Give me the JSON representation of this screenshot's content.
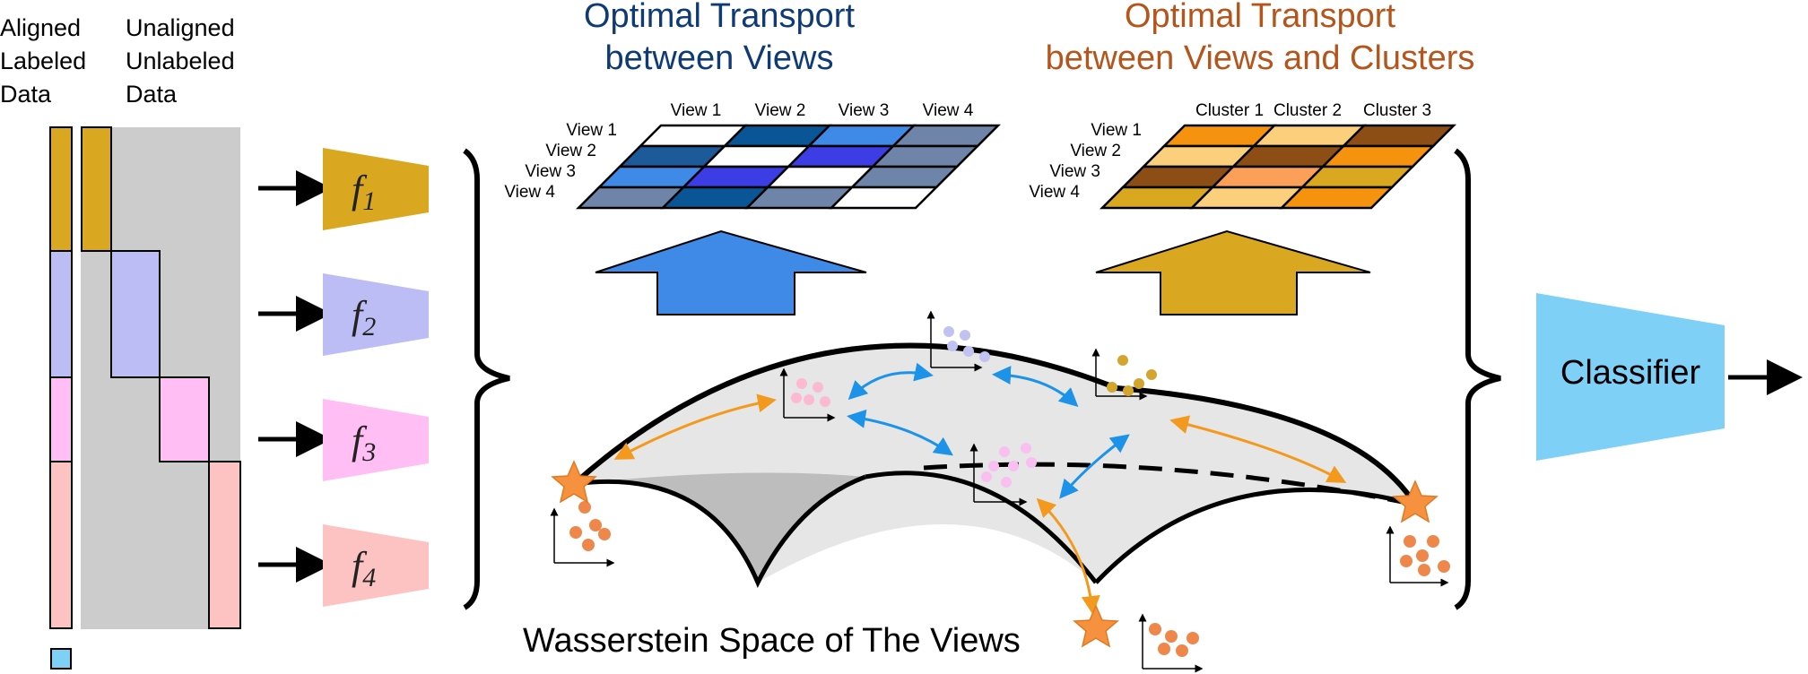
{
  "left_labels": {
    "aligned": [
      "Aligned",
      "Labeled",
      "Data"
    ],
    "unaligned": [
      "Unaligned",
      "Unlabeled",
      "Data"
    ]
  },
  "encoders": [
    {
      "base": "f",
      "sub": "1",
      "color": "#d9a820"
    },
    {
      "base": "f",
      "sub": "2",
      "color": "#bdbdf5"
    },
    {
      "base": "f",
      "sub": "3",
      "color": "#ffbff5"
    },
    {
      "base": "f",
      "sub": "4",
      "color": "#fdc2c2"
    }
  ],
  "view_ot": {
    "title": [
      "Optimal Transport",
      "between Views"
    ],
    "title_color": "#0e3a75",
    "col_labels": [
      "View 1",
      "View 2",
      "View 3",
      "View 4"
    ],
    "row_labels": [
      "View 1",
      "View 2",
      "View 3",
      "View 4"
    ],
    "cells": [
      [
        "#ffffff",
        "#0a5596",
        "#3f8ae6",
        "#6e84a8"
      ],
      [
        "#1d5a9a",
        "#ffffff",
        "#3d3de6",
        "#6e84a8"
      ],
      [
        "#3f8ae6",
        "#3d3de6",
        "#ffffff",
        "#6e84a8"
      ],
      [
        "#6e84a8",
        "#0a5596",
        "#6e84a8",
        "#ffffff"
      ]
    ],
    "arrow_color": "#3f8ae6"
  },
  "cluster_ot": {
    "title": [
      "Optimal Transport",
      "between Views and Clusters"
    ],
    "title_color": "#b5541b",
    "col_labels": [
      "Cluster 1",
      "Cluster 2",
      "Cluster 3"
    ],
    "row_labels": [
      "View 1",
      "View 2",
      "View 3",
      "View 4"
    ],
    "cells": [
      [
        "#f6930e",
        "#fbcf7c",
        "#8c4e14"
      ],
      [
        "#fbcf7c",
        "#8c4e14",
        "#f6930e"
      ],
      [
        "#8c4e14",
        "#fb9f59",
        "#d9a820"
      ],
      [
        "#d9a820",
        "#fbcf7c",
        "#f6930e"
      ]
    ],
    "arrow_color": "#d9a820"
  },
  "wasserstein_label": "Wasserstein Space of The Views",
  "classifier": {
    "label": "Classifier",
    "color": "#7fd0f7"
  },
  "colors": {
    "gold": "#d9a820",
    "lavender": "#bdbdf5",
    "pink": "#ffbff5",
    "salmon": "#fdc2c2",
    "gray_panel": "#cccccc",
    "star": "#f6923f",
    "orange_arrow": "#f39a1e",
    "blue_arrow": "#1c93e8",
    "dot_orange": "#f0874a",
    "dot_lavender": "#c1c1f2",
    "dot_pink": "#fbbad2",
    "dot_pink2": "#f8bff0",
    "dot_gold": "#d2a52e"
  }
}
